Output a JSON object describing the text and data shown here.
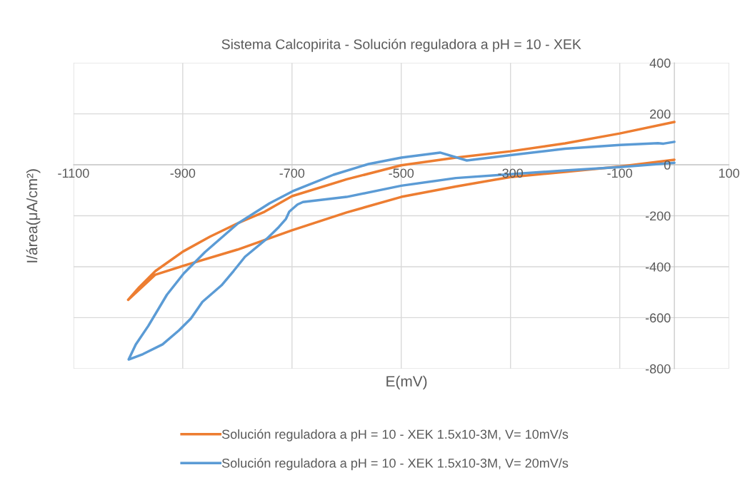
{
  "chart_data": {
    "type": "line",
    "title": "Sistema Calcopirita - Solución reguladora a pH = 10 - XEK",
    "xlabel": "E(mV)",
    "ylabel": "I/área(μA/cm²)",
    "xlim": [
      -1100,
      100
    ],
    "xticks": [
      -1100,
      -900,
      -700,
      -500,
      -300,
      -100,
      100
    ],
    "ylim": [
      -800,
      400
    ],
    "yticks": [
      -800,
      -600,
      -400,
      -200,
      0,
      200,
      400
    ],
    "grid": true,
    "legend": "bottom",
    "marker": "none",
    "line_style": "solid",
    "series": [
      {
        "name": "Solución reguladora a pH = 10 - XEK 1.5x10-3M, V= 10mV/s",
        "color": "#ed7d31",
        "x": [
          0,
          -100,
          -200,
          -300,
          -400,
          -500,
          -600,
          -700,
          -800,
          -900,
          -950,
          -1000,
          -980,
          -950,
          -900,
          -850,
          -800,
          -750,
          -700,
          -600,
          -500,
          -400,
          -300,
          -200,
          -100,
          0
        ],
        "values": [
          20,
          -7,
          -28,
          -48,
          -85,
          -126,
          -187,
          -257,
          -333,
          -397,
          -431,
          -530,
          -481,
          -417,
          -341,
          -282,
          -230,
          -184,
          -123,
          -57,
          -2,
          28,
          53,
          84,
          123,
          168
        ]
      },
      {
        "name": "Solución reguladora a pH = 10 - XEK 1.5x10-3M, V= 20mV/s",
        "color": "#5b9bd5",
        "x": [
          0,
          -100,
          -200,
          -300,
          -400,
          -500,
          -600,
          -680,
          -690,
          -705,
          -711,
          -724,
          -746,
          -786,
          -807,
          -829,
          -864,
          -885,
          -907,
          -937,
          -973,
          -999,
          -986,
          -963,
          -929,
          -898,
          -859,
          -799,
          -741,
          -699,
          -624,
          -560,
          -500,
          -429,
          -380,
          -300,
          -200,
          -100,
          -30,
          -20,
          0
        ],
        "values": [
          8,
          -9,
          -22,
          -37,
          -52,
          -82,
          -126,
          -146,
          -156,
          -184,
          -212,
          -244,
          -290,
          -361,
          -417,
          -473,
          -538,
          -603,
          -650,
          -705,
          -743,
          -764,
          -705,
          -632,
          -510,
          -426,
          -342,
          -230,
          -151,
          -104,
          -39,
          3,
          28,
          48,
          17,
          38,
          63,
          78,
          85,
          83,
          90
        ]
      }
    ]
  }
}
